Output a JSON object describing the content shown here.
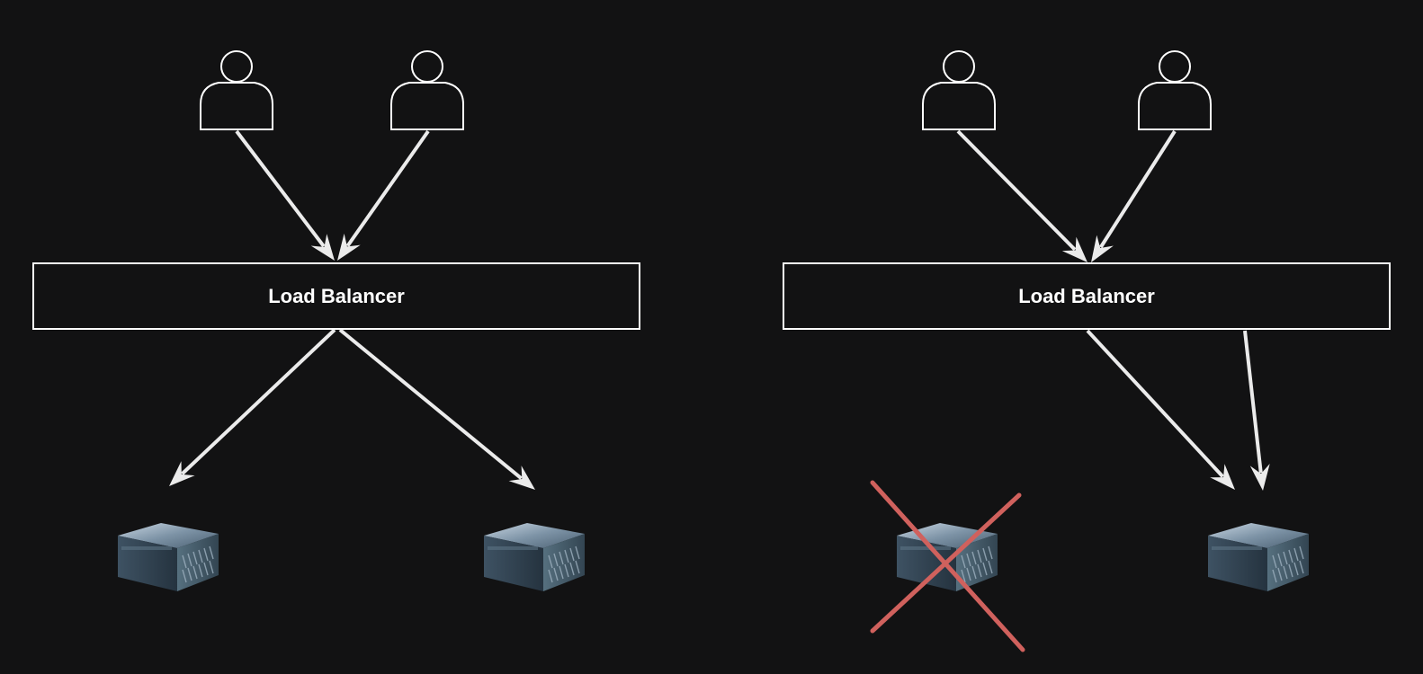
{
  "diagrams": [
    {
      "load_balancer": {
        "label": "Load Balancer"
      },
      "users": [
        {
          "icon": "user-icon"
        },
        {
          "icon": "user-icon"
        }
      ],
      "servers": [
        {
          "icon": "server-icon",
          "status": "up"
        },
        {
          "icon": "server-icon",
          "status": "up"
        }
      ]
    },
    {
      "load_balancer": {
        "label": "Load Balancer"
      },
      "users": [
        {
          "icon": "user-icon"
        },
        {
          "icon": "user-icon"
        }
      ],
      "servers": [
        {
          "icon": "server-icon",
          "status": "down"
        },
        {
          "icon": "server-icon",
          "status": "up"
        }
      ]
    }
  ],
  "colors": {
    "background": "#121213",
    "stroke": "#ffffff",
    "arrow": "#ebebeb",
    "failure_cross": "#d0615d",
    "server_top": "#7d93a6",
    "server_front": "#2f4150"
  }
}
